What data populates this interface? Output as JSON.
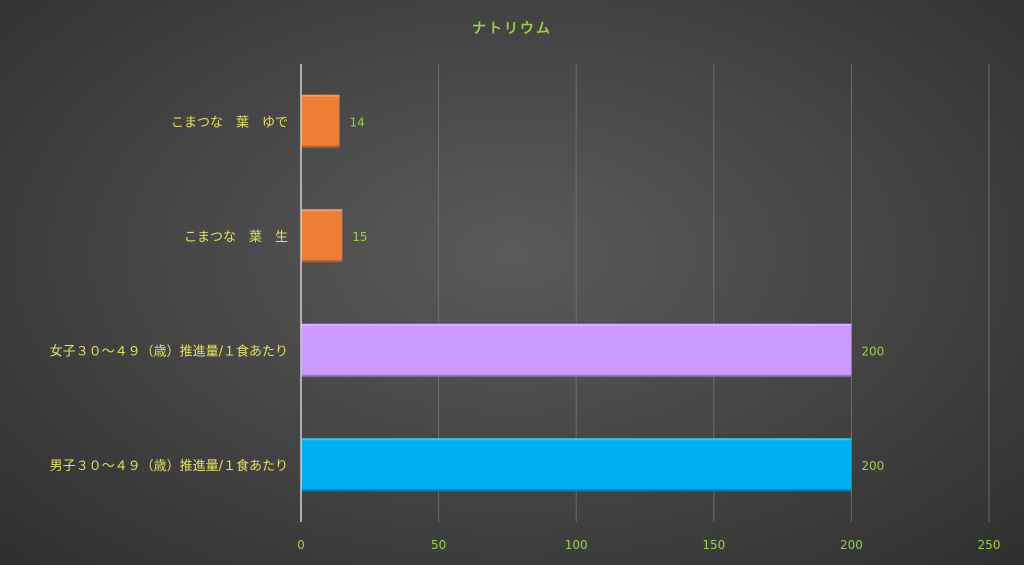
{
  "chart_data": {
    "type": "bar",
    "orientation": "horizontal",
    "title": "ナトリウム",
    "categories": [
      "こまつな　葉　ゆで",
      "こまつな　葉　生",
      "女子３０～４９（歳）推進量/１食あたり",
      "男子３０～４９（歳）推進量/１食あたり"
    ],
    "values": [
      14,
      15,
      200,
      200
    ],
    "data_labels": [
      "14",
      "15",
      "200",
      "200"
    ],
    "colors": [
      "#f07d34",
      "#f07d34",
      "#cc99ff",
      "#00b0f0"
    ],
    "xlim": [
      0,
      250
    ],
    "x_ticks": [
      0,
      50,
      100,
      150,
      200,
      250
    ],
    "x_tick_labels": [
      "0",
      "50",
      "100",
      "150",
      "200",
      "250"
    ],
    "grid": "vertical",
    "legend": "none"
  },
  "theme": {
    "title_color": "#9ad14b",
    "category_label_color": "#e8e060",
    "tick_label_color": "#9ad14b",
    "grid_color": "#6e6e6e",
    "axis_color": "#d0d0d0"
  }
}
